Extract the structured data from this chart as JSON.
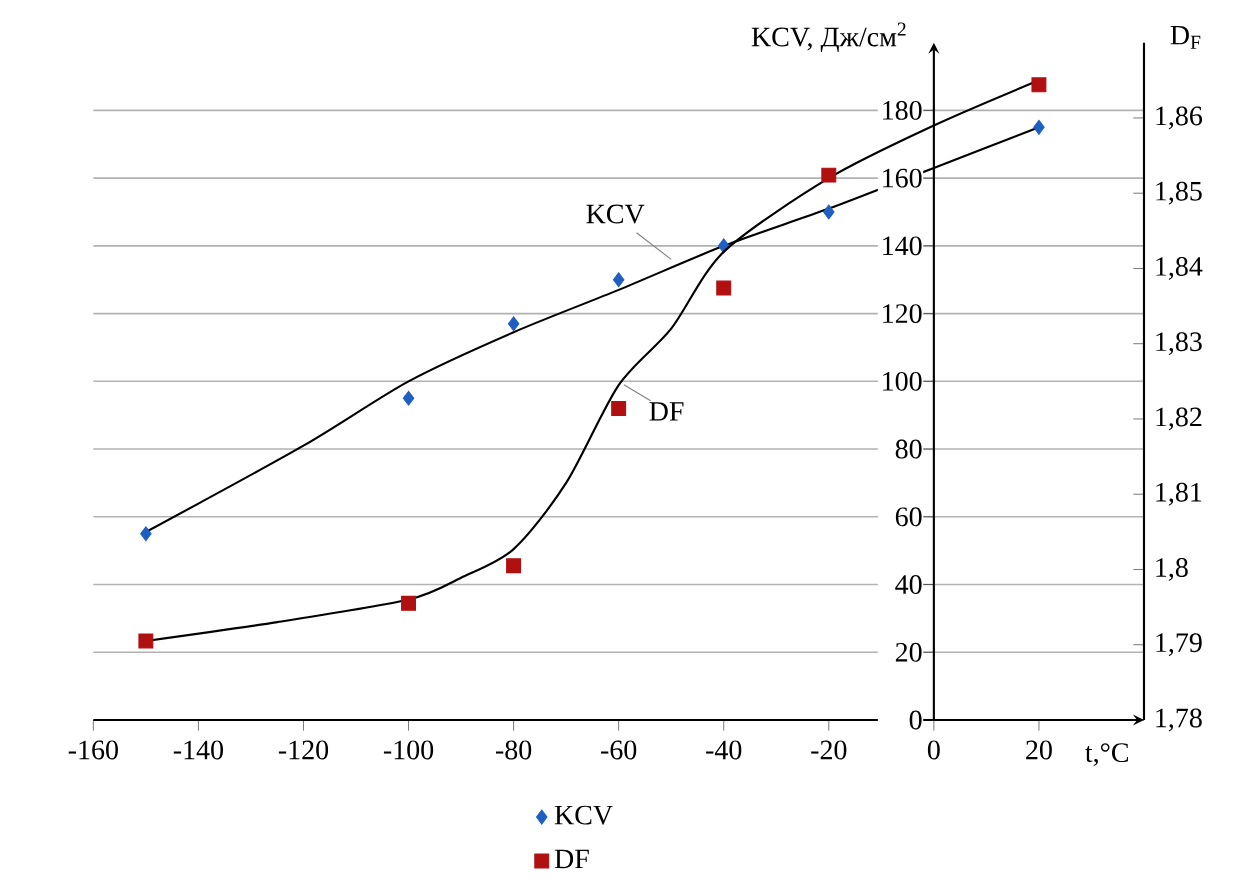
{
  "chart_data": {
    "type": "scatter",
    "xlabel": "t,°C",
    "ylabel": "KCV, Дж/см$^{2}$",
    "y2label": "D$_{F}$",
    "xlim": [
      -160,
      40
    ],
    "xticks": [
      -160,
      -140,
      -120,
      -100,
      -80,
      -60,
      -40,
      -20,
      0,
      20
    ],
    "ylim": [
      0,
      200
    ],
    "yticks": [
      0,
      20,
      40,
      60,
      80,
      100,
      120,
      140,
      160,
      180
    ],
    "y2lim": [
      1.78,
      1.87
    ],
    "y2ticks": [
      {
        "value": 1.78,
        "label": "1,78"
      },
      {
        "value": 1.79,
        "label": "1,79"
      },
      {
        "value": 1.8,
        "label": "1,8"
      },
      {
        "value": 1.81,
        "label": "1,81"
      },
      {
        "value": 1.82,
        "label": "1,82"
      },
      {
        "value": 1.83,
        "label": "1,83"
      },
      {
        "value": 1.84,
        "label": "1,84"
      },
      {
        "value": 1.85,
        "label": "1,85"
      },
      {
        "value": 1.86,
        "label": "1,86"
      }
    ],
    "grid": "y",
    "legend": "bottom",
    "series": [
      {
        "name": "KCV",
        "color": "#1f5fbf",
        "marker": "diamond",
        "x": [
          -150,
          -100,
          -80,
          -60,
          -40,
          -20,
          20
        ],
        "values": [
          55,
          95,
          117,
          130,
          140,
          150,
          175
        ]
      },
      {
        "name": "DF",
        "color": "#b01010",
        "marker": "square",
        "axis": "y2",
        "x": [
          -150,
          -100,
          -80,
          -60,
          -40,
          -20,
          20
        ],
        "values": [
          1.7905,
          1.7955,
          1.8005,
          1.8214,
          1.8374,
          1.8524,
          1.8644
        ]
      },
      {
        "type": "line",
        "color": "#000000",
        "marker": "none",
        "line_style": "solid",
        "x": [
          -150,
          -120,
          -100,
          -80,
          -60,
          -40,
          -20,
          0,
          20
        ],
        "values": [
          55.5,
          81,
          100,
          114.5,
          127,
          140,
          151,
          163,
          175
        ]
      },
      {
        "type": "line",
        "color": "#000000",
        "marker": "none",
        "line_style": "solid",
        "axis": "y2",
        "x": [
          -150,
          -125,
          -100,
          -90,
          -80,
          -70,
          -60,
          -50,
          -40,
          -20,
          0,
          20
        ],
        "values": [
          1.7905,
          1.793,
          1.796,
          1.7989,
          1.8027,
          1.8115,
          1.8245,
          1.832,
          1.8422,
          1.852,
          1.859,
          1.865
        ]
      }
    ],
    "annotations": [
      {
        "text": "KCV",
        "x": -50,
        "y": 136
      },
      {
        "text": "DF",
        "x": -59,
        "y": 99
      }
    ]
  }
}
